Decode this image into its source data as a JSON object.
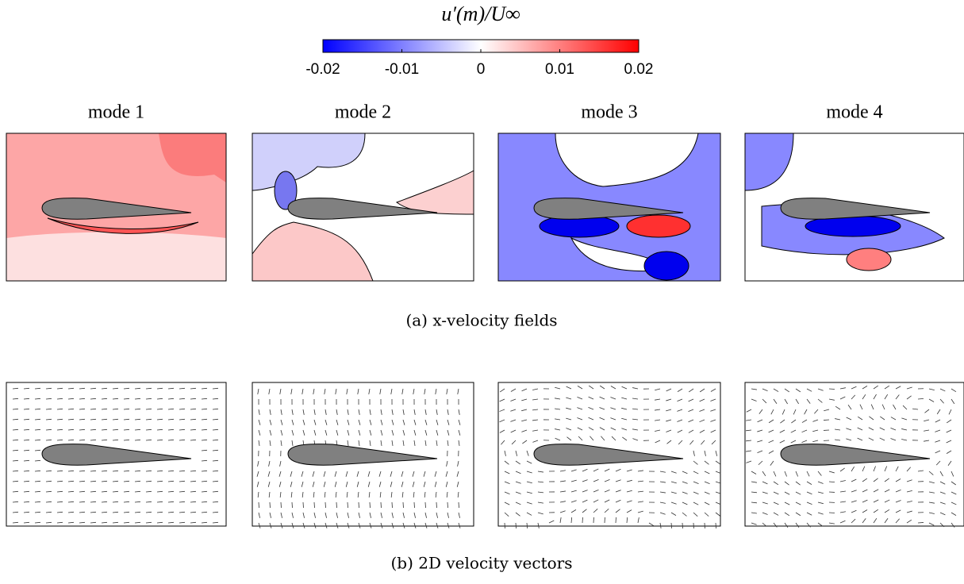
{
  "colorbar": {
    "title": "u′(m)/U∞",
    "lim": [
      -0.02,
      0.02
    ],
    "ticks": [
      -0.02,
      -0.01,
      0,
      0.01,
      0.02
    ]
  },
  "panels": [
    {
      "title": "mode 1"
    },
    {
      "title": "mode 2"
    },
    {
      "title": "mode 3"
    },
    {
      "title": "mode 4"
    }
  ],
  "captions": {
    "a": "(a) x-velocity fields",
    "b": "(b) 2D velocity vectors"
  }
}
